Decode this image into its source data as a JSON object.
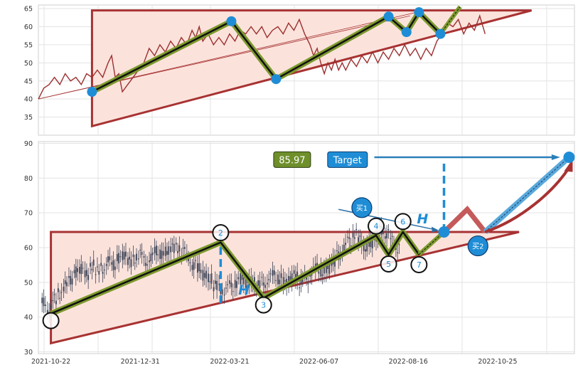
{
  "colors": {
    "pattern_line": "#a83232",
    "pattern_fill": "#fbe3dc",
    "wave_outer": "#7e9a2e",
    "wave_inner": "#111111",
    "node": "#1f8dd6",
    "candle": "#3a4256",
    "price_line": "#9c2f2f",
    "target_box": "#1f8dd6",
    "price_box": "#6e8f2a",
    "projection_red": "#c45a5a",
    "projection_blue": "#5aa9dc"
  },
  "chart_data": [
    {
      "type": "line",
      "panel": "top",
      "ylim": [
        30,
        66
      ],
      "yticks": [
        35,
        40,
        45,
        50,
        55,
        60,
        65
      ],
      "x_range": [
        0,
        300
      ],
      "grid": true,
      "series": [
        {
          "values": [
            [
              0,
              40
            ],
            [
              3,
              43
            ],
            [
              6,
              44
            ],
            [
              9,
              46
            ],
            [
              12,
              44
            ],
            [
              15,
              47
            ],
            [
              18,
              45
            ],
            [
              21,
              46
            ],
            [
              24,
              44
            ],
            [
              27,
              47
            ],
            [
              30,
              46
            ],
            [
              33,
              48
            ],
            [
              36,
              46
            ],
            [
              39,
              50
            ],
            [
              41,
              52
            ],
            [
              43,
              46
            ],
            [
              45,
              47
            ],
            [
              47,
              42
            ],
            [
              50,
              44
            ],
            [
              53,
              46
            ],
            [
              56,
              48
            ],
            [
              59,
              50
            ],
            [
              62,
              54
            ],
            [
              65,
              52
            ],
            [
              68,
              55
            ],
            [
              71,
              53
            ],
            [
              74,
              56
            ],
            [
              77,
              54
            ],
            [
              80,
              57
            ],
            [
              83,
              55
            ],
            [
              86,
              59
            ],
            [
              88,
              57
            ],
            [
              90,
              60
            ],
            [
              92,
              56
            ],
            [
              95,
              58
            ],
            [
              98,
              55
            ],
            [
              101,
              57
            ],
            [
              104,
              55
            ],
            [
              107,
              58
            ],
            [
              110,
              56
            ],
            [
              113,
              59
            ],
            [
              116,
              58
            ],
            [
              119,
              60
            ],
            [
              122,
              58
            ],
            [
              125,
              60
            ],
            [
              128,
              57
            ],
            [
              131,
              59
            ],
            [
              134,
              60
            ],
            [
              137,
              58
            ],
            [
              140,
              61
            ],
            [
              143,
              59
            ],
            [
              146,
              62
            ],
            [
              149,
              58
            ],
            [
              152,
              55
            ],
            [
              154,
              52
            ],
            [
              156,
              54
            ],
            [
              158,
              50
            ],
            [
              160,
              47
            ],
            [
              162,
              50
            ],
            [
              164,
              48
            ],
            [
              166,
              51
            ],
            [
              168,
              48
            ],
            [
              170,
              50
            ],
            [
              172,
              48
            ],
            [
              175,
              51
            ],
            [
              178,
              49
            ],
            [
              181,
              52
            ],
            [
              184,
              50
            ],
            [
              187,
              53
            ],
            [
              190,
              50
            ],
            [
              193,
              53
            ],
            [
              196,
              51
            ],
            [
              199,
              54
            ],
            [
              202,
              52
            ],
            [
              205,
              55
            ],
            [
              208,
              52
            ],
            [
              211,
              54
            ],
            [
              214,
              51
            ],
            [
              217,
              54
            ],
            [
              220,
              52
            ],
            [
              223,
              56
            ],
            [
              226,
              58
            ],
            [
              229,
              61
            ],
            [
              232,
              60
            ],
            [
              235,
              62
            ],
            [
              238,
              58
            ],
            [
              241,
              61
            ],
            [
              244,
              59
            ],
            [
              247,
              63
            ],
            [
              250,
              58
            ]
          ]
        }
      ],
      "pattern_vertices": [
        [
          30,
          64.5
        ],
        [
          30,
          32.5
        ],
        [
          276,
          64.5
        ]
      ],
      "wave_points": [
        [
          30,
          42
        ],
        [
          108,
          61.5
        ],
        [
          133,
          45.5
        ],
        [
          196,
          62.8
        ],
        [
          206,
          58.5
        ],
        [
          213,
          64
        ],
        [
          225,
          58
        ]
      ],
      "wave_extension": [
        [
          225,
          58
        ],
        [
          236,
          65.5
        ]
      ],
      "helper_lines": [
        [
          [
            0,
            40
          ],
          [
            212,
            64
          ]
        ],
        [
          [
            0,
            40
          ],
          [
            208,
            63
          ]
        ]
      ]
    },
    {
      "type": "candlestick",
      "panel": "bottom",
      "ylim": [
        29.5,
        90.5
      ],
      "yticks": [
        30,
        40,
        50,
        60,
        70,
        80,
        90
      ],
      "x_range": [
        0,
        300
      ],
      "grid": true,
      "x_tick_labels": [
        {
          "x": 7,
          "label": "2021-10-22"
        },
        {
          "x": 57,
          "label": "2021-12-31"
        },
        {
          "x": 107,
          "label": "2022-03-21"
        },
        {
          "x": 157,
          "label": "2022-06-07"
        },
        {
          "x": 207,
          "label": "2022-08-16"
        },
        {
          "x": 257,
          "label": "2022-10-25"
        }
      ],
      "candles": [
        [
          3,
          44
        ],
        [
          6,
          42
        ],
        [
          9,
          45
        ],
        [
          12,
          47
        ],
        [
          15,
          49
        ],
        [
          18,
          51
        ],
        [
          21,
          53
        ],
        [
          24,
          54
        ],
        [
          27,
          52
        ],
        [
          30,
          55
        ],
        [
          33,
          53
        ],
        [
          36,
          54
        ],
        [
          39,
          56
        ],
        [
          42,
          55
        ],
        [
          45,
          57
        ],
        [
          48,
          58
        ],
        [
          51,
          56
        ],
        [
          54,
          57
        ],
        [
          57,
          58
        ],
        [
          60,
          56
        ],
        [
          63,
          57
        ],
        [
          66,
          59
        ],
        [
          69,
          58
        ],
        [
          72,
          59
        ],
        [
          75,
          60
        ],
        [
          78,
          60
        ],
        [
          81,
          59
        ],
        [
          84,
          57
        ],
        [
          87,
          55
        ],
        [
          90,
          54
        ],
        [
          93,
          52
        ],
        [
          96,
          51
        ],
        [
          99,
          49
        ],
        [
          102,
          48
        ],
        [
          105,
          48
        ],
        [
          108,
          49
        ],
        [
          111,
          50
        ],
        [
          114,
          51
        ],
        [
          117,
          50
        ],
        [
          120,
          50
        ],
        [
          123,
          49
        ],
        [
          126,
          50
        ],
        [
          129,
          51
        ],
        [
          132,
          52
        ],
        [
          135,
          51
        ],
        [
          138,
          50
        ],
        [
          141,
          51
        ],
        [
          144,
          52
        ],
        [
          147,
          50
        ],
        [
          150,
          51
        ],
        [
          153,
          53
        ],
        [
          156,
          54
        ],
        [
          159,
          53
        ],
        [
          162,
          54
        ],
        [
          165,
          56
        ],
        [
          168,
          58
        ],
        [
          171,
          60
        ],
        [
          174,
          62
        ],
        [
          177,
          64
        ],
        [
          180,
          62
        ],
        [
          183,
          60
        ],
        [
          186,
          61
        ],
        [
          189,
          63
        ],
        [
          192,
          65
        ],
        [
          195,
          64
        ],
        [
          198,
          62
        ],
        [
          201,
          60
        ]
      ],
      "pattern_vertices": [
        [
          7,
          64.5
        ],
        [
          7,
          32.5
        ],
        [
          269,
          64.5
        ]
      ],
      "wave_points": [
        [
          7,
          41
        ],
        [
          102,
          61.5
        ],
        [
          126,
          45.5
        ],
        [
          189,
          63.5
        ],
        [
          196,
          58
        ],
        [
          204,
          64.5
        ],
        [
          213,
          58
        ]
      ],
      "wave_extension": [
        [
          213,
          58
        ],
        [
          227,
          64.5
        ]
      ],
      "projection_red": [
        [
          227,
          64.5
        ],
        [
          240,
          71
        ],
        [
          250,
          64.5
        ]
      ],
      "projection_blue": [
        [
          250,
          64.5
        ],
        [
          297,
          86
        ]
      ],
      "breakout_curve": [
        [
          250,
          64.5
        ],
        [
          270,
          68
        ],
        [
          288,
          76
        ],
        [
          297,
          83
        ]
      ],
      "target_level": 86,
      "target_arrow": [
        [
          188,
          86
        ],
        [
          292,
          86
        ]
      ],
      "measure_lines": [
        [
          [
            102,
            44
          ],
          [
            102,
            64.5
          ]
        ],
        [
          [
            227,
            64.5
          ],
          [
            227,
            85
          ]
        ]
      ],
      "buy_arrow": [
        [
          168,
          71
        ],
        [
          224,
          65
        ]
      ],
      "wave_circles": [
        {
          "x": 7,
          "y": 39,
          "label": ""
        },
        {
          "x": 102,
          "y": 64.3,
          "label": "2"
        },
        {
          "x": 126,
          "y": 43.5,
          "label": "3"
        },
        {
          "x": 189,
          "y": 66.2,
          "label": "4"
        },
        {
          "x": 196,
          "y": 55.3,
          "label": "5"
        },
        {
          "x": 204,
          "y": 67.5,
          "label": "6"
        },
        {
          "x": 213,
          "y": 55.1,
          "label": "7"
        }
      ],
      "buy_bubbles": [
        {
          "x": 181,
          "y": 71.5,
          "label": "买1"
        },
        {
          "x": 246,
          "y": 60.5,
          "label": "买2"
        }
      ],
      "h_labels": [
        {
          "x": 115,
          "y": 46.5,
          "label": "H"
        },
        {
          "x": 215,
          "y": 67,
          "label": "H"
        }
      ],
      "price_box": {
        "x": 142,
        "y": 85.3,
        "label": "85.97"
      },
      "target_box": {
        "x": 173,
        "y": 85.3,
        "label": "Target"
      }
    }
  ]
}
